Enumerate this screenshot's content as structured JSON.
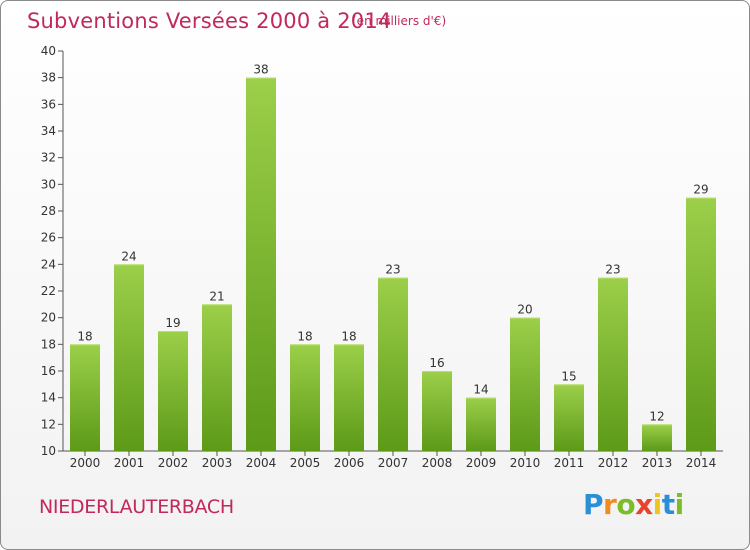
{
  "header": {
    "title": "Subventions Versées 2000 à 2014",
    "subtitle": "(en milliers d'€)"
  },
  "footer": {
    "place": "NIEDERLAUTERBACH",
    "logo": {
      "letters": [
        "P",
        "r",
        "o",
        "x",
        "i",
        "t",
        "i"
      ],
      "colors": [
        "#2a8fd6",
        "#f28c1e",
        "#7cbc2a",
        "#e8442c",
        "#f2c21e",
        "#2a8fd6",
        "#7cbc2a"
      ]
    }
  },
  "chart_data": {
    "type": "bar",
    "title": "Subventions Versées 2000 à 2014",
    "subtitle": "(en milliers d'€)",
    "categories": [
      "2000",
      "2001",
      "2002",
      "2003",
      "2004",
      "2005",
      "2006",
      "2007",
      "2008",
      "2009",
      "2010",
      "2011",
      "2012",
      "2013",
      "2014"
    ],
    "values": [
      18,
      24,
      19,
      21,
      38,
      18,
      18,
      23,
      16,
      14,
      20,
      15,
      23,
      12,
      29
    ],
    "ylim": [
      10,
      40
    ],
    "yticks": [
      10,
      12,
      14,
      16,
      18,
      20,
      22,
      24,
      26,
      28,
      30,
      32,
      34,
      36,
      38,
      40
    ],
    "grid": false,
    "bar_color_top": "#9ccf4a",
    "bar_color_bottom": "#5c9a18",
    "axis_color": "#555555",
    "text_color": "#c2285a"
  }
}
